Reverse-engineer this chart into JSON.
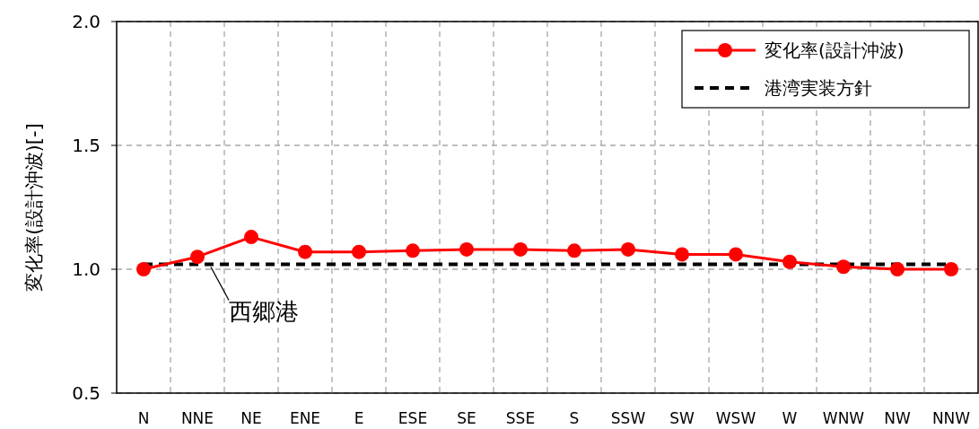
{
  "chart_data": {
    "type": "line",
    "ylabel": "変化率(設計沖波)[-]",
    "categories": [
      "N",
      "NNE",
      "NE",
      "ENE",
      "E",
      "ESE",
      "SE",
      "SSE",
      "S",
      "SSW",
      "SW",
      "WSW",
      "W",
      "WNW",
      "NW",
      "NNW"
    ],
    "ylim": [
      0.5,
      2.0
    ],
    "yticks": [
      {
        "value": 0.5,
        "label": "0.5"
      },
      {
        "value": 1.0,
        "label": "1.0"
      },
      {
        "value": 1.5,
        "label": "1.5"
      },
      {
        "value": 2.0,
        "label": "2.0"
      }
    ],
    "series": [
      {
        "name": "変化率(設計沖波)",
        "color": "#ff0000",
        "marker": "circle",
        "line_style": "solid",
        "values": [
          1.0,
          1.05,
          1.13,
          1.07,
          1.07,
          1.075,
          1.08,
          1.08,
          1.075,
          1.08,
          1.06,
          1.06,
          1.03,
          1.01,
          1.0,
          1.0
        ]
      },
      {
        "name": "港湾実装方針",
        "color": "#000000",
        "marker": "none",
        "line_style": "dashed",
        "values": [
          1.02,
          1.02,
          1.02,
          1.02,
          1.02,
          1.02,
          1.02,
          1.02,
          1.02,
          1.02,
          1.02,
          1.02,
          1.02,
          1.02,
          1.02,
          1.02
        ]
      }
    ],
    "grid": true,
    "legend": "top right",
    "annotations": [
      {
        "text": "西郷港",
        "y": 1.02
      }
    ]
  }
}
